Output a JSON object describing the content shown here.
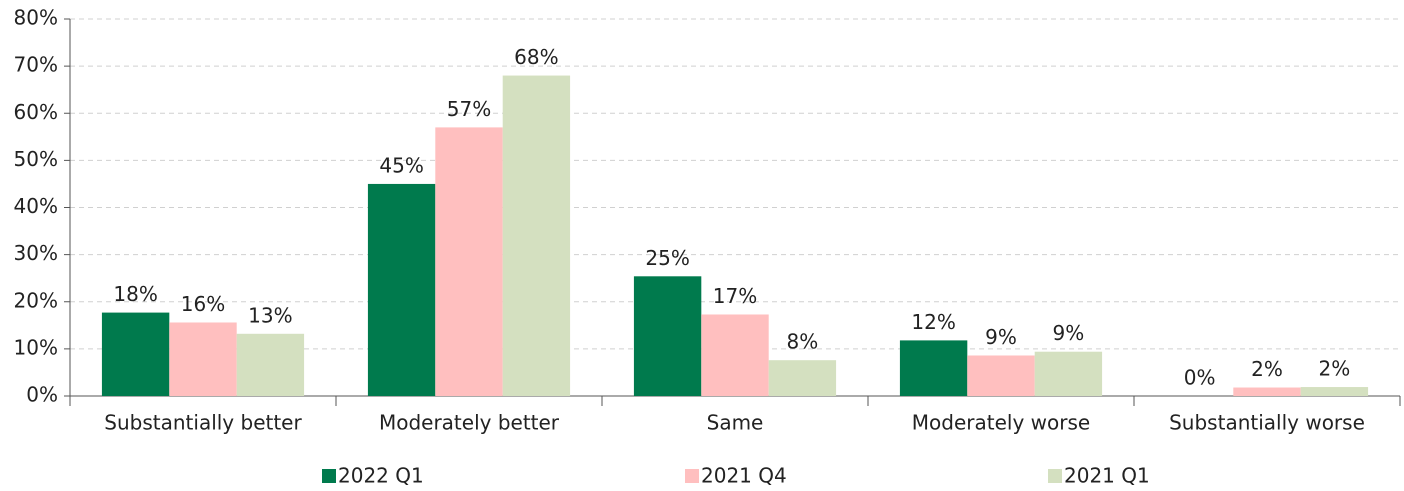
{
  "chart_data": {
    "type": "bar",
    "categories": [
      "Substantially better",
      "Moderately better",
      "Same",
      "Moderately worse",
      "Substantially worse"
    ],
    "series": [
      {
        "name": "2022 Q1",
        "color": "#007a4d",
        "values": [
          17.7,
          45,
          25.4,
          11.8,
          0
        ],
        "value_labels": [
          "18%",
          "45%",
          "25%",
          "12%",
          "0%"
        ]
      },
      {
        "name": "2021 Q4",
        "color": "#ffbfbf",
        "values": [
          15.6,
          57,
          17.3,
          8.6,
          1.8
        ],
        "value_labels": [
          "16%",
          "57%",
          "17%",
          "9%",
          "2%"
        ]
      },
      {
        "name": "2021 Q1",
        "color": "#d4e0c0",
        "values": [
          13.2,
          68,
          7.6,
          9.4,
          1.9
        ],
        "value_labels": [
          "13%",
          "68%",
          "8%",
          "9%",
          "2%"
        ]
      }
    ],
    "ylim": [
      0,
      80
    ],
    "yticks": [
      {
        "value": 0,
        "label": "0%"
      },
      {
        "value": 10,
        "label": "10%"
      },
      {
        "value": 20,
        "label": "20%"
      },
      {
        "value": 30,
        "label": "30%"
      },
      {
        "value": 40,
        "label": "40%"
      },
      {
        "value": 50,
        "label": "50%"
      },
      {
        "value": 60,
        "label": "60%"
      },
      {
        "value": 70,
        "label": "70%"
      },
      {
        "value": 80,
        "label": "80%"
      }
    ],
    "grid": true,
    "legend": "bottom"
  }
}
